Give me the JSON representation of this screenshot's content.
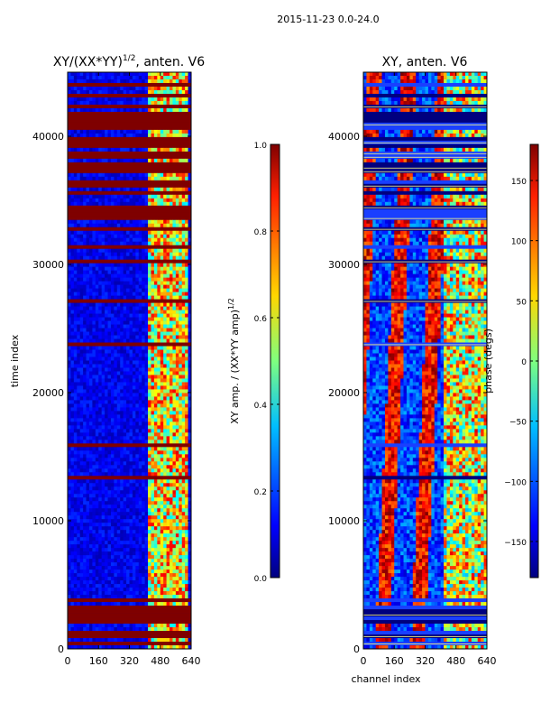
{
  "suptitle": "2015-11-23 0.0-24.0",
  "chart_data": [
    {
      "type": "heatmap",
      "title_main": "XY/(XX*YY)",
      "title_sup": "1/2",
      "title_rest": ", anten. V6",
      "xlabel": "",
      "ylabel": "time index",
      "xlim": [
        0,
        640
      ],
      "ylim": [
        0,
        45000
      ],
      "xticks": [
        "0",
        "160",
        "320",
        "480",
        "640"
      ],
      "yticks": [
        "0",
        "10000",
        "20000",
        "30000",
        "40000"
      ],
      "ytick_values": [
        0,
        10000,
        20000,
        30000,
        40000
      ],
      "colorbar": {
        "label_main": "XY amp. / (XX*YY amp)",
        "label_sup": "1/2",
        "range": [
          0.0,
          1.0
        ],
        "ticks": [
          "0.0",
          "0.2",
          "0.4",
          "0.6",
          "0.8",
          "1.0"
        ],
        "tick_values": [
          0.0,
          0.2,
          0.4,
          0.6,
          0.8,
          1.0
        ]
      },
      "colormap": [
        "#00007f",
        "#0000ff",
        "#00bfff",
        "#7fff7f",
        "#ffd700",
        "#ff4500",
        "#7f0000"
      ]
    },
    {
      "type": "heatmap",
      "title_main": "XY, anten. V6",
      "xlabel": "channel index",
      "ylabel": "",
      "xlim": [
        0,
        640
      ],
      "ylim": [
        0,
        45000
      ],
      "xticks": [
        "0",
        "160",
        "320",
        "480",
        "640"
      ],
      "yticks": [
        "0",
        "10000",
        "20000",
        "30000",
        "40000"
      ],
      "ytick_values": [
        0,
        10000,
        20000,
        30000,
        40000
      ],
      "colorbar": {
        "label_main": "phase (degs)",
        "range": [
          -180,
          180
        ],
        "ticks": [
          "−150",
          "−100",
          "−50",
          "0",
          "50",
          "100",
          "150"
        ],
        "tick_values": [
          -150,
          -100,
          -50,
          0,
          50,
          100,
          150
        ]
      },
      "colormap": [
        "#00007f",
        "#0000ff",
        "#00bfff",
        "#7fff7f",
        "#ffd700",
        "#ff4500",
        "#7f0000"
      ]
    }
  ]
}
